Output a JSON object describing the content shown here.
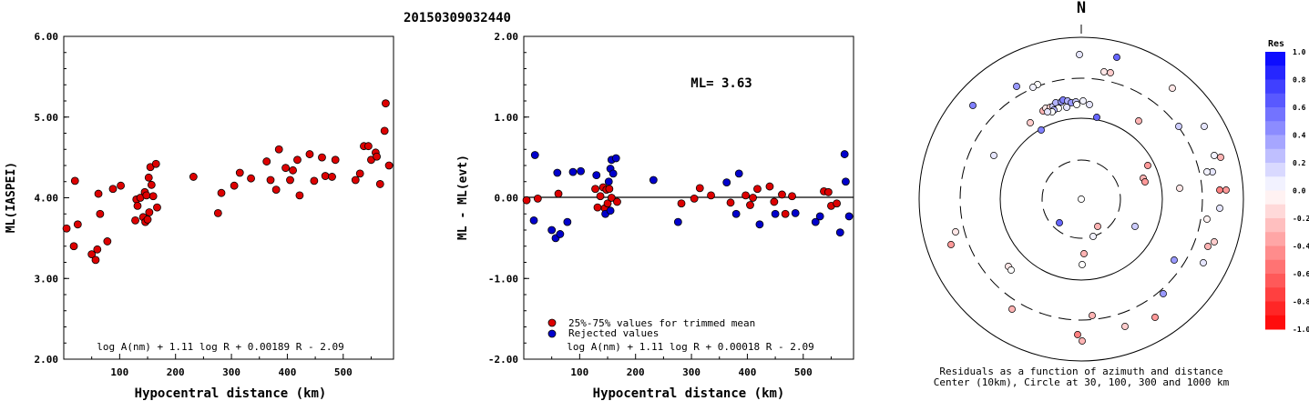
{
  "title": "20150309032440",
  "chart_data": [
    {
      "type": "scatter",
      "name": "magnitude-vs-distance",
      "xlabel": "Hypocentral distance (km)",
      "ylabel": "ML(IASPEI)",
      "xlim": [
        0,
        590
      ],
      "ylim": [
        2.0,
        6.0
      ],
      "x_ticks": [
        "100",
        "200",
        "300",
        "400",
        "500"
      ],
      "y_ticks": [
        "2.00",
        "3.00",
        "4.00",
        "5.00",
        "6.00"
      ],
      "formula": "log A(nm) + 1.11 log R + 0.00189 R - 2.09",
      "point_color": "#dd0000",
      "points": [
        [
          5,
          3.62
        ],
        [
          18,
          3.4
        ],
        [
          20,
          4.21
        ],
        [
          25,
          3.67
        ],
        [
          50,
          3.3
        ],
        [
          57,
          3.23
        ],
        [
          60,
          3.36
        ],
        [
          62,
          4.05
        ],
        [
          65,
          3.8
        ],
        [
          78,
          3.46
        ],
        [
          88,
          4.11
        ],
        [
          102,
          4.15
        ],
        [
          128,
          3.72
        ],
        [
          130,
          3.98
        ],
        [
          132,
          3.9
        ],
        [
          137,
          4.0
        ],
        [
          142,
          3.76
        ],
        [
          145,
          4.07
        ],
        [
          146,
          3.7
        ],
        [
          148,
          4.03
        ],
        [
          150,
          3.73
        ],
        [
          152,
          4.25
        ],
        [
          153,
          3.82
        ],
        [
          155,
          4.38
        ],
        [
          157,
          4.16
        ],
        [
          160,
          4.02
        ],
        [
          165,
          4.42
        ],
        [
          167,
          3.88
        ],
        [
          232,
          4.26
        ],
        [
          276,
          3.81
        ],
        [
          282,
          4.06
        ],
        [
          305,
          4.15
        ],
        [
          315,
          4.31
        ],
        [
          335,
          4.24
        ],
        [
          363,
          4.45
        ],
        [
          370,
          4.22
        ],
        [
          380,
          4.1
        ],
        [
          385,
          4.6
        ],
        [
          397,
          4.37
        ],
        [
          405,
          4.22
        ],
        [
          410,
          4.34
        ],
        [
          418,
          4.47
        ],
        [
          422,
          4.03
        ],
        [
          440,
          4.54
        ],
        [
          448,
          4.21
        ],
        [
          462,
          4.5
        ],
        [
          468,
          4.27
        ],
        [
          480,
          4.26
        ],
        [
          486,
          4.47
        ],
        [
          522,
          4.22
        ],
        [
          530,
          4.3
        ],
        [
          537,
          4.64
        ],
        [
          545,
          4.64
        ],
        [
          550,
          4.47
        ],
        [
          558,
          4.56
        ],
        [
          560,
          4.51
        ],
        [
          566,
          4.17
        ],
        [
          574,
          4.83
        ],
        [
          576,
          5.17
        ],
        [
          582,
          4.4
        ]
      ]
    },
    {
      "type": "scatter",
      "name": "residual-vs-distance",
      "xlabel": "Hypocentral distance (km)",
      "ylabel": "ML - ML(evt)",
      "xlim": [
        0,
        590
      ],
      "ylim": [
        -2.0,
        2.0
      ],
      "x_ticks": [
        "100",
        "200",
        "300",
        "400",
        "500"
      ],
      "y_ticks": [
        "-2.00",
        "-1.00",
        "0.00",
        "1.00",
        "2.00"
      ],
      "annotation": "ML= 3.63",
      "legend": [
        "25%-75% values for trimmed mean",
        "Rejected values"
      ],
      "legend_position": "bottom-left",
      "formula": "log A(nm) + 1.11 log R + 0.00018 R - 2.09",
      "series": [
        {
          "name": "25%-75% values for trimmed mean",
          "color": "#dd0000",
          "points": [
            [
              5,
              -0.03
            ],
            [
              25,
              -0.01
            ],
            [
              62,
              0.05
            ],
            [
              128,
              0.11
            ],
            [
              132,
              -0.12
            ],
            [
              137,
              0.02
            ],
            [
              142,
              0.13
            ],
            [
              145,
              -0.13
            ],
            [
              148,
              0.1
            ],
            [
              150,
              -0.07
            ],
            [
              153,
              0.11
            ],
            [
              157,
              0.0
            ],
            [
              167,
              -0.05
            ],
            [
              282,
              -0.07
            ],
            [
              305,
              -0.01
            ],
            [
              315,
              0.12
            ],
            [
              335,
              0.03
            ],
            [
              370,
              -0.06
            ],
            [
              397,
              0.03
            ],
            [
              405,
              -0.09
            ],
            [
              410,
              0.0
            ],
            [
              418,
              0.11
            ],
            [
              440,
              0.14
            ],
            [
              448,
              -0.05
            ],
            [
              462,
              0.04
            ],
            [
              468,
              -0.2
            ],
            [
              480,
              0.02
            ],
            [
              537,
              0.08
            ],
            [
              545,
              0.07
            ],
            [
              550,
              -0.1
            ],
            [
              560,
              -0.07
            ]
          ]
        },
        {
          "name": "Rejected values",
          "color": "#0000cc",
          "points": [
            [
              18,
              -0.28
            ],
            [
              20,
              0.53
            ],
            [
              50,
              -0.4
            ],
            [
              57,
              -0.5
            ],
            [
              60,
              0.31
            ],
            [
              65,
              -0.45
            ],
            [
              78,
              -0.3
            ],
            [
              88,
              0.32
            ],
            [
              102,
              0.33
            ],
            [
              130,
              0.28
            ],
            [
              146,
              -0.2
            ],
            [
              152,
              0.2
            ],
            [
              155,
              0.36
            ],
            [
              155,
              -0.16
            ],
            [
              157,
              0.47
            ],
            [
              160,
              0.3
            ],
            [
              165,
              0.49
            ],
            [
              232,
              0.22
            ],
            [
              276,
              -0.3
            ],
            [
              363,
              0.19
            ],
            [
              380,
              -0.2
            ],
            [
              385,
              0.3
            ],
            [
              422,
              -0.33
            ],
            [
              450,
              -0.2
            ],
            [
              486,
              -0.19
            ],
            [
              522,
              -0.3
            ],
            [
              530,
              -0.23
            ],
            [
              566,
              -0.43
            ],
            [
              574,
              0.54
            ],
            [
              576,
              0.2
            ],
            [
              582,
              -0.23
            ]
          ]
        }
      ]
    },
    {
      "type": "scatter",
      "name": "azimuth-residual-map",
      "north_label": "N",
      "caption": [
        "Residuals as a function of azimuth and distance",
        "Center (10km), Circle at 30, 100, 300 and 1000 km"
      ],
      "colorbar_title": "Res",
      "colorbar_ticks": [
        "1.0",
        "0.8",
        "0.6",
        "0.4",
        "0.2",
        "0.0",
        "-0.2",
        "-0.4",
        "-0.6",
        "-0.8",
        "-1.0"
      ],
      "stations": [
        [
          1185,
          60,
          0.1
        ],
        [
          1226,
          63,
          0.6
        ],
        [
          1212,
          79,
          -0.1
        ],
        [
          1219,
          80,
          -0.2
        ],
        [
          1139,
          93,
          0.0
        ],
        [
          1134,
          96,
          0.05
        ],
        [
          1116,
          95,
          0.4
        ],
        [
          1287,
          97,
          -0.1
        ],
        [
          1145,
          122,
          -0.3
        ],
        [
          1148,
          119,
          -0.1
        ],
        [
          1153,
          118,
          -0.2
        ],
        [
          1156,
          117,
          0.2
        ],
        [
          1161,
          115,
          0.6
        ],
        [
          1159,
          113,
          0.3
        ],
        [
          1165,
          112,
          0.4
        ],
        [
          1167,
          110,
          0.5
        ],
        [
          1172,
          111,
          0.3
        ],
        [
          1176,
          113,
          0.4
        ],
        [
          1181,
          112,
          0.2
        ],
        [
          1189,
          111,
          0.05
        ],
        [
          1196,
          115,
          0.1
        ],
        [
          1182,
          115,
          0.0
        ],
        [
          1171,
          118,
          0.1
        ],
        [
          1162,
          119,
          0.0
        ],
        [
          1157,
          121,
          0.3
        ],
        [
          1068,
          116,
          0.5
        ],
        [
          1155,
          123,
          0.0
        ],
        [
          1150,
          123,
          0.1
        ],
        [
          1204,
          129,
          0.6
        ],
        [
          1131,
          135,
          -0.2
        ],
        [
          1250,
          133,
          -0.3
        ],
        [
          1294,
          139,
          0.2
        ],
        [
          1322,
          139,
          0.1
        ],
        [
          1143,
          143,
          0.5
        ],
        [
          1091,
          171,
          0.1
        ],
        [
          1333,
          171,
          0.05
        ],
        [
          1340,
          173,
          -0.3
        ],
        [
          1331,
          189,
          0.1
        ],
        [
          1325,
          189,
          0.05
        ],
        [
          1260,
          182,
          -0.4
        ],
        [
          1255,
          196,
          -0.3
        ],
        [
          1257,
          200,
          -0.4
        ],
        [
          1295,
          207,
          -0.1
        ],
        [
          1339,
          209,
          -0.5
        ],
        [
          1346,
          209,
          -0.4
        ],
        [
          1187,
          219,
          0.0
        ],
        [
          1339,
          229,
          0.1
        ],
        [
          1325,
          241,
          -0.05
        ],
        [
          1163,
          245,
          0.6
        ],
        [
          1205,
          249,
          -0.3
        ],
        [
          1246,
          249,
          0.2
        ],
        [
          1200,
          260,
          0.05
        ],
        [
          1333,
          266,
          -0.2
        ],
        [
          1049,
          255,
          -0.1
        ],
        [
          1044,
          269,
          -0.4
        ],
        [
          1326,
          271,
          -0.3
        ],
        [
          1190,
          279,
          -0.3
        ],
        [
          1188,
          291,
          0.0
        ],
        [
          1289,
          286,
          0.4
        ],
        [
          1107,
          293,
          -0.1
        ],
        [
          1321,
          289,
          0.1
        ],
        [
          1110,
          297,
          0.0
        ],
        [
          1277,
          323,
          0.4
        ],
        [
          1111,
          340,
          -0.3
        ],
        [
          1199,
          347,
          -0.3
        ],
        [
          1268,
          349,
          -0.4
        ],
        [
          1235,
          359,
          -0.2
        ],
        [
          1183,
          368,
          -0.5
        ],
        [
          1188,
          375,
          -0.3
        ]
      ]
    }
  ]
}
